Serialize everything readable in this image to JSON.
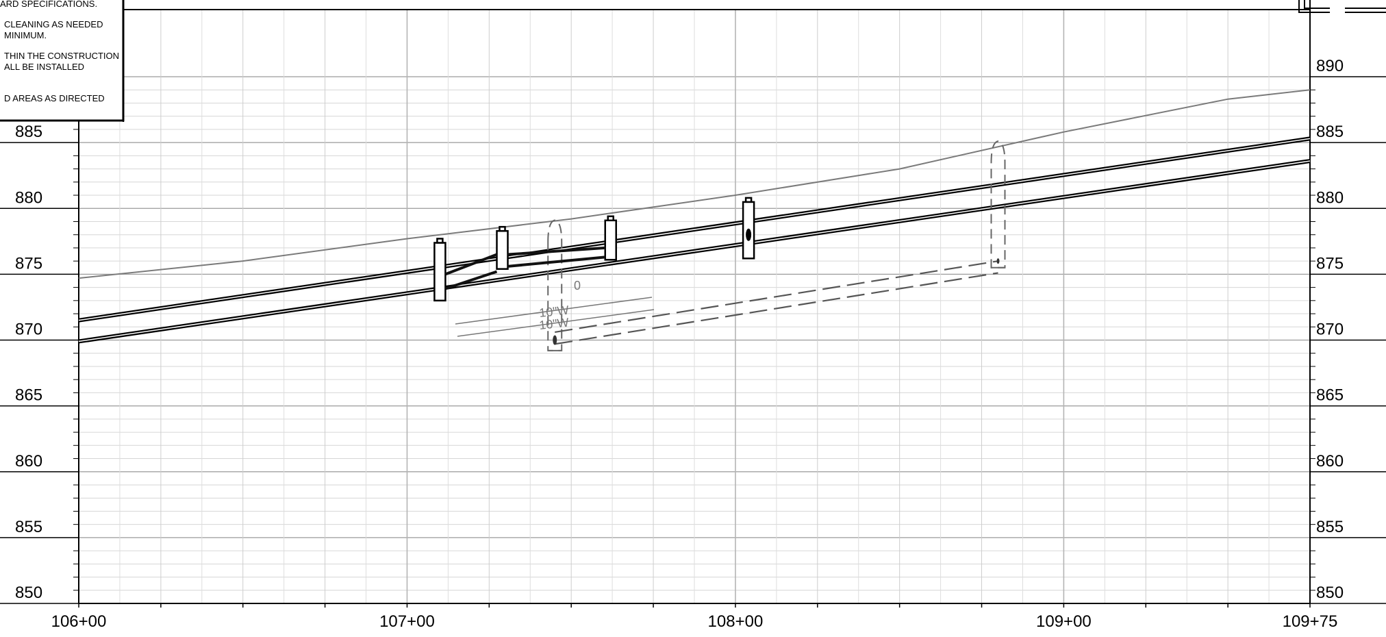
{
  "notes": [
    {
      "lines": [
        "ARD SPECIFICATIONS."
      ]
    },
    {
      "lines": [
        "CLEANING AS NEEDED",
        "MINIMUM."
      ]
    },
    {
      "lines": [
        "THIN THE CONSTRUCTION",
        "ALL BE INSTALLED"
      ]
    },
    {
      "lines": [
        "D AREAS AS DIRECTED"
      ]
    }
  ],
  "chart_data": {
    "type": "profile",
    "x_axis": {
      "range_ft": [
        10600,
        10975
      ],
      "major_ticks": [
        10600,
        10700,
        10800,
        10900,
        10975
      ],
      "tick_labels": [
        "106+00",
        "107+00",
        "108+00",
        "109+00",
        "109+75"
      ]
    },
    "y_axis": {
      "range": [
        850,
        890
      ],
      "labeled_ticks": [
        850,
        855,
        860,
        865,
        870,
        875,
        880,
        885,
        890
      ]
    },
    "existing_ground": [
      [
        10600,
        874.7
      ],
      [
        10650,
        876.0
      ],
      [
        10700,
        877.7
      ],
      [
        10750,
        879.2
      ],
      [
        10800,
        881.0
      ],
      [
        10850,
        883.0
      ],
      [
        10900,
        885.8
      ],
      [
        10950,
        888.3
      ],
      [
        10975,
        889.0
      ]
    ],
    "pipes": [
      {
        "name": "upper",
        "points": [
          [
            10600,
            871.5
          ],
          [
            10975,
            885.3
          ]
        ]
      },
      {
        "name": "lower",
        "points": [
          [
            10600,
            869.9
          ],
          [
            10975,
            883.6
          ]
        ]
      }
    ],
    "structures": [
      {
        "station": 10710,
        "top": 877.7,
        "bottom": 873.0
      },
      {
        "station": 10729,
        "top": 878.6,
        "bottom": 875.4
      },
      {
        "station": 10762,
        "top": 879.4,
        "bottom": 876.1
      },
      {
        "station": 10804,
        "top": 880.8,
        "bottom": 876.2
      }
    ],
    "proposed_structures": [
      {
        "station": 10745,
        "top": 879.0,
        "bottom": 869.2
      },
      {
        "station": 10880,
        "top": 885.0,
        "bottom": 875.5
      }
    ],
    "annotations": [
      "0",
      "10\"W",
      "10\"W"
    ]
  }
}
